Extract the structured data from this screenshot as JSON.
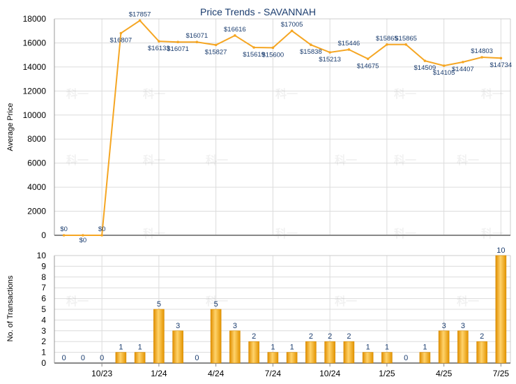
{
  "chart_data": [
    {
      "type": "line",
      "title": "Price Trends - SAVANNAH",
      "ylabel": "Average Price",
      "ylim": [
        0,
        18000
      ],
      "yticks": [
        "0",
        "2000",
        "4000",
        "6000",
        "8000",
        "10000",
        "12000",
        "14000",
        "16000",
        "18000"
      ],
      "color": "#f5a623",
      "legend": "none",
      "grid": true,
      "series": [
        {
          "values": [
            0,
            0,
            0,
            16807,
            17857,
            16133,
            16071,
            16071,
            15827,
            16616,
            15619,
            15600,
            17005,
            15838,
            15213,
            15446,
            14675,
            15865,
            15865,
            14509,
            14105,
            14407,
            14803,
            14734
          ],
          "labels": [
            "$0",
            "$0",
            "$0",
            "$16807",
            "$17857",
            "$16133",
            "$16071",
            "$16071",
            "$15827",
            "$16616",
            "$15619",
            "$15600",
            "$17005",
            "$15838",
            "$15213",
            "$15446",
            "$14675",
            "$15865",
            "$15865",
            "$14509",
            "$14105",
            "$14407",
            "$14803",
            "$14734"
          ]
        }
      ]
    },
    {
      "type": "bar",
      "ylabel": "No. of Transactions",
      "ylim": [
        0,
        10
      ],
      "yticks": [
        "0",
        "1",
        "2",
        "3",
        "4",
        "5",
        "6",
        "7",
        "8",
        "9",
        "10"
      ],
      "xticks": [
        {
          "index": 2,
          "label": "10/23"
        },
        {
          "index": 5,
          "label": "1/24"
        },
        {
          "index": 8,
          "label": "4/24"
        },
        {
          "index": 11,
          "label": "7/24"
        },
        {
          "index": 14,
          "label": "10/24"
        },
        {
          "index": 17,
          "label": "1/25"
        },
        {
          "index": 20,
          "label": "4/25"
        },
        {
          "index": 23,
          "label": "7/25"
        }
      ],
      "color": "#f5a623",
      "legend": "none",
      "grid": true,
      "values": [
        0,
        0,
        0,
        1,
        1,
        5,
        3,
        0,
        5,
        3,
        2,
        1,
        1,
        2,
        2,
        2,
        1,
        1,
        0,
        1,
        3,
        3,
        2,
        10
      ]
    }
  ],
  "watermark": "科一"
}
